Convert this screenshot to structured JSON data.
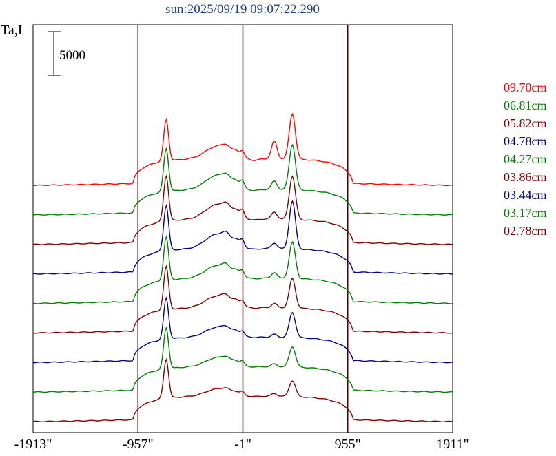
{
  "chart_data": {
    "type": "line",
    "title": "sun:2025/09/19 09:07:22.290",
    "ylabel": "Ta,I",
    "scale_bar_label": "5000",
    "xlabel": "",
    "x_ticks": [
      "-1913\"",
      "-957\"",
      "-1\"",
      "955\"",
      "1911\""
    ],
    "x_tick_values": [
      -1913,
      -957,
      -1,
      955,
      1911
    ],
    "vertical_markers": [
      -957,
      -1,
      955
    ],
    "xlim": [
      -1913,
      1911
    ],
    "series": [
      {
        "name": "09.70cm",
        "color": "#ff0000",
        "baseline": 0,
        "limb": 1.0,
        "center": 0.7,
        "peakL": 1.0,
        "peakR": 1.0,
        "peakR2": 0.62,
        "dip": 0.42
      },
      {
        "name": "06.81cm",
        "color": "#008000",
        "baseline": 0.0,
        "limb": 0.95,
        "center": 0.78,
        "peakL": 1.05,
        "peakR": 1.0,
        "peakR2": 0.3,
        "dip": 0.3
      },
      {
        "name": "05.82cm",
        "color": "#800000",
        "baseline": 0.0,
        "limb": 0.95,
        "center": 0.8,
        "peakL": 1.1,
        "peakR": 0.95,
        "peakR2": 0.25,
        "dip": 0.25
      },
      {
        "name": "04.78cm",
        "color": "#000080",
        "baseline": 0.0,
        "limb": 0.95,
        "center": 0.8,
        "peakL": 1.1,
        "peakR": 1.05,
        "peakR2": 0.2,
        "dip": 0.2
      },
      {
        "name": "04.27cm",
        "color": "#008000",
        "baseline": 0.0,
        "limb": 0.95,
        "center": 0.7,
        "peakL": 1.05,
        "peakR": 0.8,
        "peakR2": 0.2,
        "dip": 0.2
      },
      {
        "name": "03.86cm",
        "color": "#800000",
        "baseline": 0.0,
        "limb": 0.95,
        "center": 0.65,
        "peakL": 1.05,
        "peakR": 0.65,
        "peakR2": 0.15,
        "dip": 0.15
      },
      {
        "name": "03.44cm",
        "color": "#000080",
        "baseline": 0.0,
        "limb": 0.95,
        "center": 0.55,
        "peakL": 1.0,
        "peakR": 0.55,
        "peakR2": 0.1,
        "dip": 0.1
      },
      {
        "name": "03.17cm",
        "color": "#008000",
        "baseline": 0.0,
        "limb": 0.95,
        "center": 0.5,
        "peakL": 1.0,
        "peakR": 0.45,
        "peakR2": 0.1,
        "dip": 0.1
      },
      {
        "name": "02.78cm",
        "color": "#800000",
        "baseline": 0.0,
        "limb": 0.95,
        "center": 0.4,
        "peakL": 0.95,
        "peakR": 0.35,
        "peakR2": 0.1,
        "dip": 0.1
      }
    ]
  }
}
